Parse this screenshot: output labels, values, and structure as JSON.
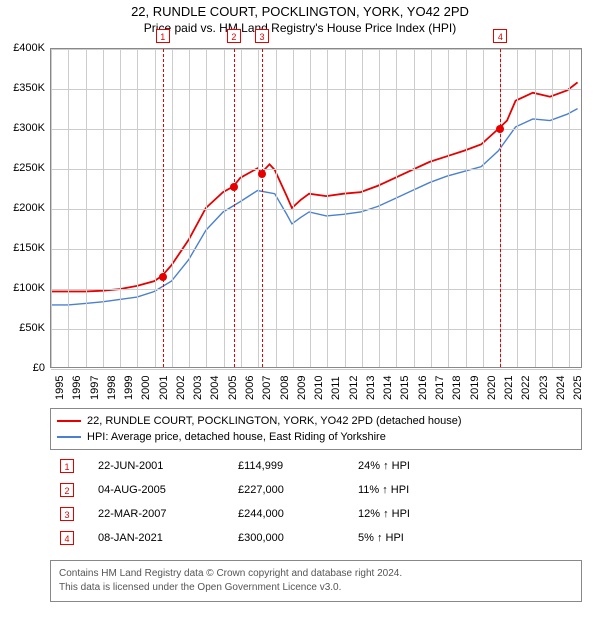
{
  "title": "22, RUNDLE COURT, POCKLINGTON, YORK, YO42 2PD",
  "subtitle": "Price paid vs. HM Land Registry's House Price Index (HPI)",
  "chart": {
    "type": "line",
    "background_color": "#ffffff",
    "grid_color": "#cccccc",
    "border_color": "#888888",
    "x": {
      "min": 1995,
      "max": 2025.8,
      "ticks": [
        1995,
        1996,
        1997,
        1998,
        1999,
        2000,
        2001,
        2002,
        2003,
        2004,
        2005,
        2006,
        2007,
        2008,
        2009,
        2010,
        2011,
        2012,
        2013,
        2014,
        2015,
        2016,
        2017,
        2018,
        2019,
        2020,
        2021,
        2022,
        2023,
        2024,
        2025
      ]
    },
    "y": {
      "min": 0,
      "max": 400000,
      "ticks": [
        0,
        50000,
        100000,
        150000,
        200000,
        250000,
        300000,
        350000,
        400000
      ],
      "tick_labels": [
        "£0",
        "£50K",
        "£100K",
        "£150K",
        "£200K",
        "£250K",
        "£300K",
        "£350K",
        "£400K"
      ]
    },
    "series": [
      {
        "name": "22, RUNDLE COURT, POCKLINGTON, YORK, YO42 2PD (detached house)",
        "color": "#e60000",
        "width": 1.8,
        "points": [
          [
            1995,
            95000
          ],
          [
            1996,
            95000
          ],
          [
            1997,
            95000
          ],
          [
            1998,
            96000
          ],
          [
            1999,
            98000
          ],
          [
            2000,
            102000
          ],
          [
            2001,
            108000
          ],
          [
            2001.47,
            114999
          ],
          [
            2002,
            128000
          ],
          [
            2003,
            160000
          ],
          [
            2004,
            200000
          ],
          [
            2005,
            220000
          ],
          [
            2005.59,
            227000
          ],
          [
            2006,
            238000
          ],
          [
            2007,
            250000
          ],
          [
            2007.22,
            244000
          ],
          [
            2007.7,
            255000
          ],
          [
            2008,
            248000
          ],
          [
            2008.7,
            215000
          ],
          [
            2009,
            200000
          ],
          [
            2009.5,
            210000
          ],
          [
            2010,
            218000
          ],
          [
            2011,
            215000
          ],
          [
            2012,
            218000
          ],
          [
            2013,
            220000
          ],
          [
            2014,
            228000
          ],
          [
            2015,
            238000
          ],
          [
            2016,
            248000
          ],
          [
            2017,
            258000
          ],
          [
            2018,
            265000
          ],
          [
            2019,
            272000
          ],
          [
            2020,
            280000
          ],
          [
            2021.02,
            300000
          ],
          [
            2021.5,
            310000
          ],
          [
            2022,
            335000
          ],
          [
            2023,
            345000
          ],
          [
            2024,
            340000
          ],
          [
            2025,
            348000
          ],
          [
            2025.6,
            358000
          ]
        ]
      },
      {
        "name": "HPI: Average price, detached house, East Riding of Yorkshire",
        "color": "#4a80d0",
        "width": 1.4,
        "points": [
          [
            1995,
            78000
          ],
          [
            1996,
            78000
          ],
          [
            1997,
            80000
          ],
          [
            1998,
            82000
          ],
          [
            1999,
            85000
          ],
          [
            2000,
            88000
          ],
          [
            2001,
            95000
          ],
          [
            2002,
            108000
          ],
          [
            2003,
            135000
          ],
          [
            2004,
            172000
          ],
          [
            2005,
            195000
          ],
          [
            2006,
            208000
          ],
          [
            2007,
            222000
          ],
          [
            2008,
            218000
          ],
          [
            2008.7,
            192000
          ],
          [
            2009,
            180000
          ],
          [
            2009.5,
            188000
          ],
          [
            2010,
            195000
          ],
          [
            2011,
            190000
          ],
          [
            2012,
            192000
          ],
          [
            2013,
            195000
          ],
          [
            2014,
            202000
          ],
          [
            2015,
            212000
          ],
          [
            2016,
            222000
          ],
          [
            2017,
            232000
          ],
          [
            2018,
            240000
          ],
          [
            2019,
            246000
          ],
          [
            2020,
            252000
          ],
          [
            2021,
            272000
          ],
          [
            2022,
            302000
          ],
          [
            2023,
            312000
          ],
          [
            2024,
            310000
          ],
          [
            2025,
            318000
          ],
          [
            2025.6,
            325000
          ]
        ]
      }
    ],
    "markers": [
      {
        "n": "1",
        "x": 2001.47,
        "y": 114999,
        "color": "#e60000"
      },
      {
        "n": "2",
        "x": 2005.59,
        "y": 227000,
        "color": "#e60000"
      },
      {
        "n": "3",
        "x": 2007.22,
        "y": 244000,
        "color": "#e60000"
      },
      {
        "n": "4",
        "x": 2021.02,
        "y": 300000,
        "color": "#e60000"
      }
    ]
  },
  "legend": {
    "items": [
      {
        "label": "22, RUNDLE COURT, POCKLINGTON, YORK, YO42 2PD (detached house)",
        "color": "#e60000"
      },
      {
        "label": "HPI: Average price, detached house, East Riding of Yorkshire",
        "color": "#4a80d0"
      }
    ]
  },
  "sales": [
    {
      "n": "1",
      "date": "22-JUN-2001",
      "price": "£114,999",
      "diff": "24% ↑ HPI",
      "color": "#e60000"
    },
    {
      "n": "2",
      "date": "04-AUG-2005",
      "price": "£227,000",
      "diff": "11% ↑ HPI",
      "color": "#e60000"
    },
    {
      "n": "3",
      "date": "22-MAR-2007",
      "price": "£244,000",
      "diff": "12% ↑ HPI",
      "color": "#e60000"
    },
    {
      "n": "4",
      "date": "08-JAN-2021",
      "price": "£300,000",
      "diff": "5% ↑ HPI",
      "color": "#e60000"
    }
  ],
  "attribution": {
    "line1": "Contains HM Land Registry data © Crown copyright and database right 2024.",
    "line2": "This data is licensed under the Open Government Licence v3.0."
  }
}
